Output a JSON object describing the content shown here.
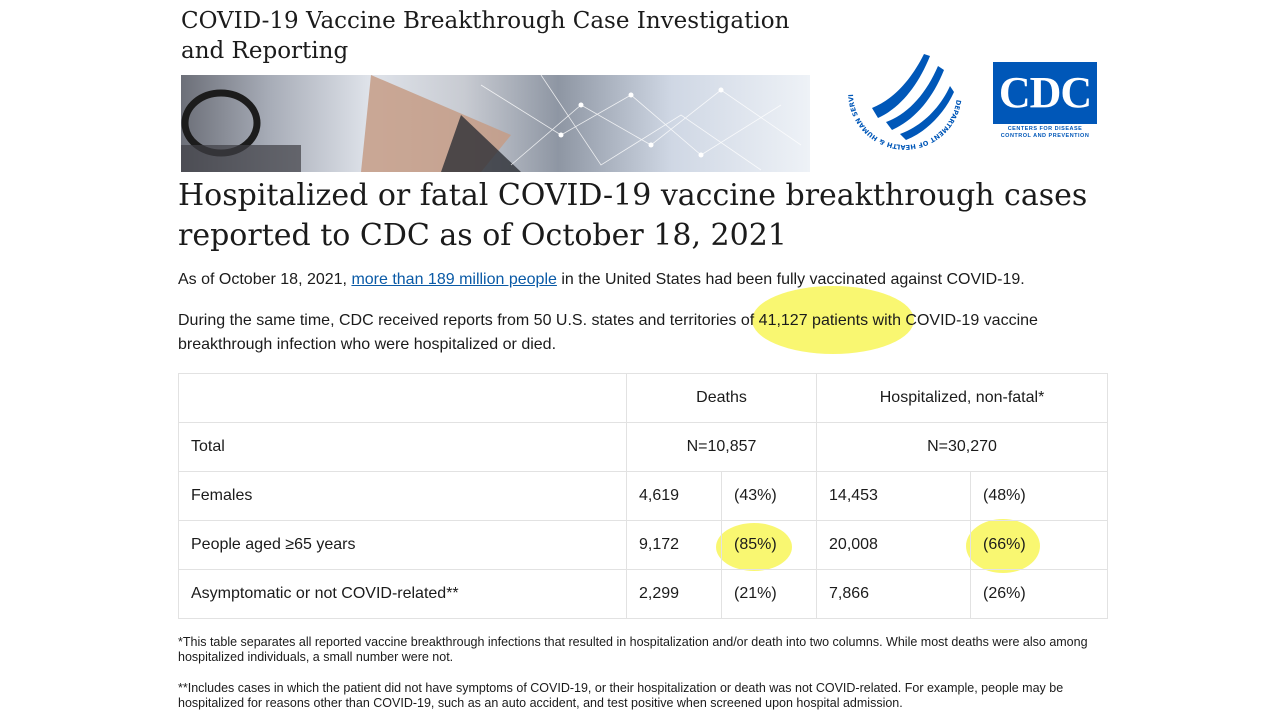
{
  "banner": {
    "title_line1": "COVID-19 Vaccine Breakthrough Case Investigation",
    "title_line2": "and Reporting"
  },
  "logos": {
    "hhs_arc_text": "DEPARTMENT OF HEALTH & HUMAN SERVICES · USA",
    "cdc_wordmark": "CDC",
    "cdc_tagline_line1": "CENTERS FOR DISEASE",
    "cdc_tagline_line2": "CONTROL AND PREVENTION",
    "cdc_color": "#0057b8"
  },
  "headline": {
    "line1": "Hospitalized or fatal COVID-19 vaccine breakthrough cases",
    "line2": "reported to CDC as of October 18, 2021"
  },
  "intro": {
    "p1_before": "As of October 18, 2021, ",
    "p1_link": "more than 189 million people",
    "p1_after": " in the United States had been fully vaccinated against COVID-19.",
    "p2": "During the same time, CDC received reports from 50 U.S. states and territories of 41,127 patients with COVID-19 vaccine breakthrough infection who were hospitalized or died."
  },
  "table": {
    "headers": [
      "",
      "Deaths",
      "Hospitalized, non-fatal*"
    ],
    "total": {
      "label": "Total",
      "deaths": "N=10,857",
      "hospitalized": "N=30,270"
    },
    "rows": [
      {
        "label": "Females",
        "deaths_n": "4,619",
        "deaths_pct": "(43%)",
        "hosp_n": "14,453",
        "hosp_pct": "(48%)"
      },
      {
        "label": "People aged ≥65 years",
        "deaths_n": "9,172",
        "deaths_pct": "(85%)",
        "hosp_n": "20,008",
        "hosp_pct": "(66%)"
      },
      {
        "label": "Asymptomatic or not COVID-related**",
        "deaths_n": "2,299",
        "deaths_pct": "(21%)",
        "hosp_n": "7,866",
        "hosp_pct": "(26%)"
      }
    ]
  },
  "footnotes": {
    "f1": "*This table separates all reported vaccine breakthrough infections that resulted in hospitalization and/or death into two columns.  While most deaths were also among hospitalized individuals, a small number were not.",
    "f2": "**Includes cases in which the patient did not have symptoms of COVID-19, or their hospitalization or death was not COVID-related. For example, people may be hospitalized for reasons other than COVID-19, such as an auto accident, and test positive when screened upon hospital admission."
  },
  "highlight_color": "#f6f43a"
}
